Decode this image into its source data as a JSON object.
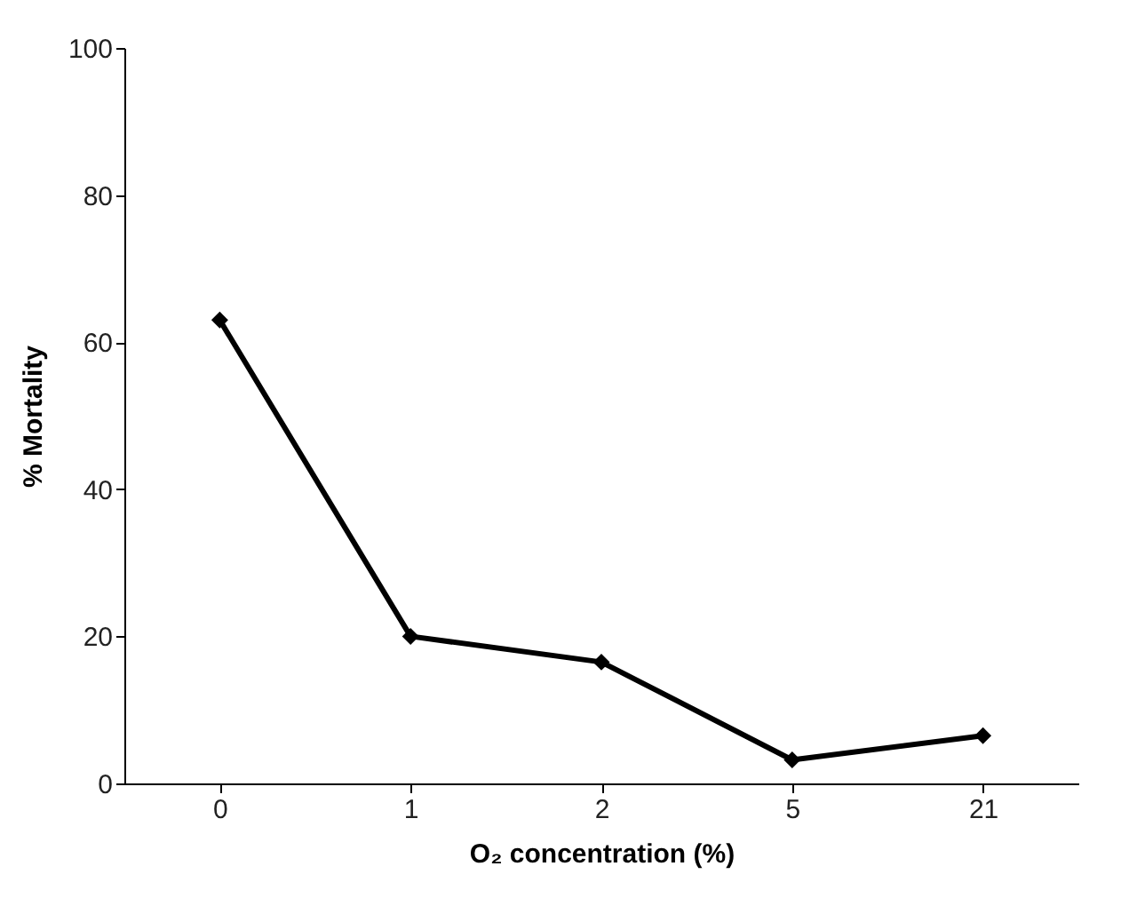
{
  "chart_data": {
    "type": "line",
    "xlabel": "O₂ concentration (%)",
    "ylabel": "% Mortality",
    "categories": [
      "0",
      "1",
      "2",
      "5",
      "21"
    ],
    "series": [
      {
        "color": "#000000",
        "values": [
          63,
          20,
          16.5,
          3.2,
          6.5
        ]
      }
    ],
    "ylim": [
      0,
      100
    ],
    "yticks": [
      0,
      20,
      40,
      60,
      80,
      100
    ],
    "grid": false,
    "marker": "diamond",
    "line_style": "solid"
  }
}
